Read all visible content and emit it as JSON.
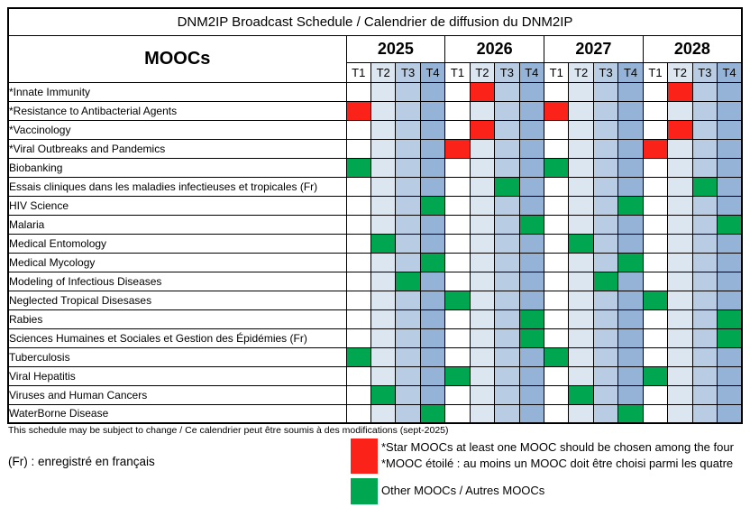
{
  "title": "DNM2IP Broadcast Schedule / Calendrier de diffusion du DNM2IP",
  "header": {
    "moocs_label": "MOOCs",
    "years": [
      "2025",
      "2026",
      "2027",
      "2028"
    ],
    "quarters": [
      "T1",
      "T2",
      "T3",
      "T4"
    ]
  },
  "colors": {
    "star": "#fb221a",
    "other": "#00a650",
    "q1": "#ffffff",
    "q2": "#dce6f1",
    "q3": "#b8cce4",
    "q4": "#95b3d7"
  },
  "rows": [
    {
      "name": "*Innate Immunity",
      "type": "star",
      "slots": [
        "2026-T2",
        "2028-T2"
      ]
    },
    {
      "name": "*Resistance to Antibacterial Agents",
      "type": "star",
      "slots": [
        "2025-T1",
        "2027-T1"
      ]
    },
    {
      "name": "*Vaccinology",
      "type": "star",
      "slots": [
        "2026-T2",
        "2028-T2"
      ]
    },
    {
      "name": "*Viral Outbreaks and Pandemics",
      "type": "star",
      "slots": [
        "2026-T1",
        "2028-T1"
      ]
    },
    {
      "name": "Biobanking",
      "type": "other",
      "slots": [
        "2025-T1",
        "2027-T1"
      ]
    },
    {
      "name": "Essais cliniques dans les maladies infectieuses et tropicales (Fr)",
      "type": "other",
      "slots": [
        "2026-T3",
        "2028-T3"
      ]
    },
    {
      "name": "HIV Science",
      "type": "other",
      "slots": [
        "2025-T4",
        "2027-T4"
      ]
    },
    {
      "name": "Malaria",
      "type": "other",
      "slots": [
        "2026-T4",
        "2028-T4"
      ]
    },
    {
      "name": "Medical Entomology",
      "type": "other",
      "slots": [
        "2025-T2",
        "2027-T2"
      ]
    },
    {
      "name": "Medical Mycology",
      "type": "other",
      "slots": [
        "2025-T4",
        "2027-T4"
      ]
    },
    {
      "name": "Modeling of Infectious Diseases",
      "type": "other",
      "slots": [
        "2025-T3",
        "2027-T3"
      ]
    },
    {
      "name": "Neglected Tropical Disesases",
      "type": "other",
      "slots": [
        "2026-T1",
        "2028-T1"
      ]
    },
    {
      "name": "Rabies",
      "type": "other",
      "slots": [
        "2026-T4",
        "2028-T4"
      ]
    },
    {
      "name": "Sciences Humaines et Sociales et Gestion des Épidémies (Fr)",
      "type": "other",
      "slots": [
        "2026-T4",
        "2028-T4"
      ]
    },
    {
      "name": "Tuberculosis",
      "type": "other",
      "slots": [
        "2025-T1",
        "2027-T1"
      ]
    },
    {
      "name": "Viral Hepatitis",
      "type": "other",
      "slots": [
        "2026-T1",
        "2028-T1"
      ]
    },
    {
      "name": "Viruses and Human Cancers",
      "type": "other",
      "slots": [
        "2025-T2",
        "2027-T2"
      ]
    },
    {
      "name": "WaterBorne Disease",
      "type": "other",
      "slots": [
        "2025-T4",
        "2027-T4"
      ]
    }
  ],
  "footer": {
    "note": "This schedule may be subject to change / Ce calendrier peut être soumis à des modifications (sept-2025)",
    "fr_note": "(Fr) :  enregistré en français",
    "legend": {
      "star_line1": "*Star MOOCs at least one MOOC should be chosen among the four",
      "star_line2": "*MOOC étoilé : au moins un MOOC doit être choisi parmi les quatre",
      "other_label": "Other MOOCs / Autres MOOCs"
    }
  }
}
